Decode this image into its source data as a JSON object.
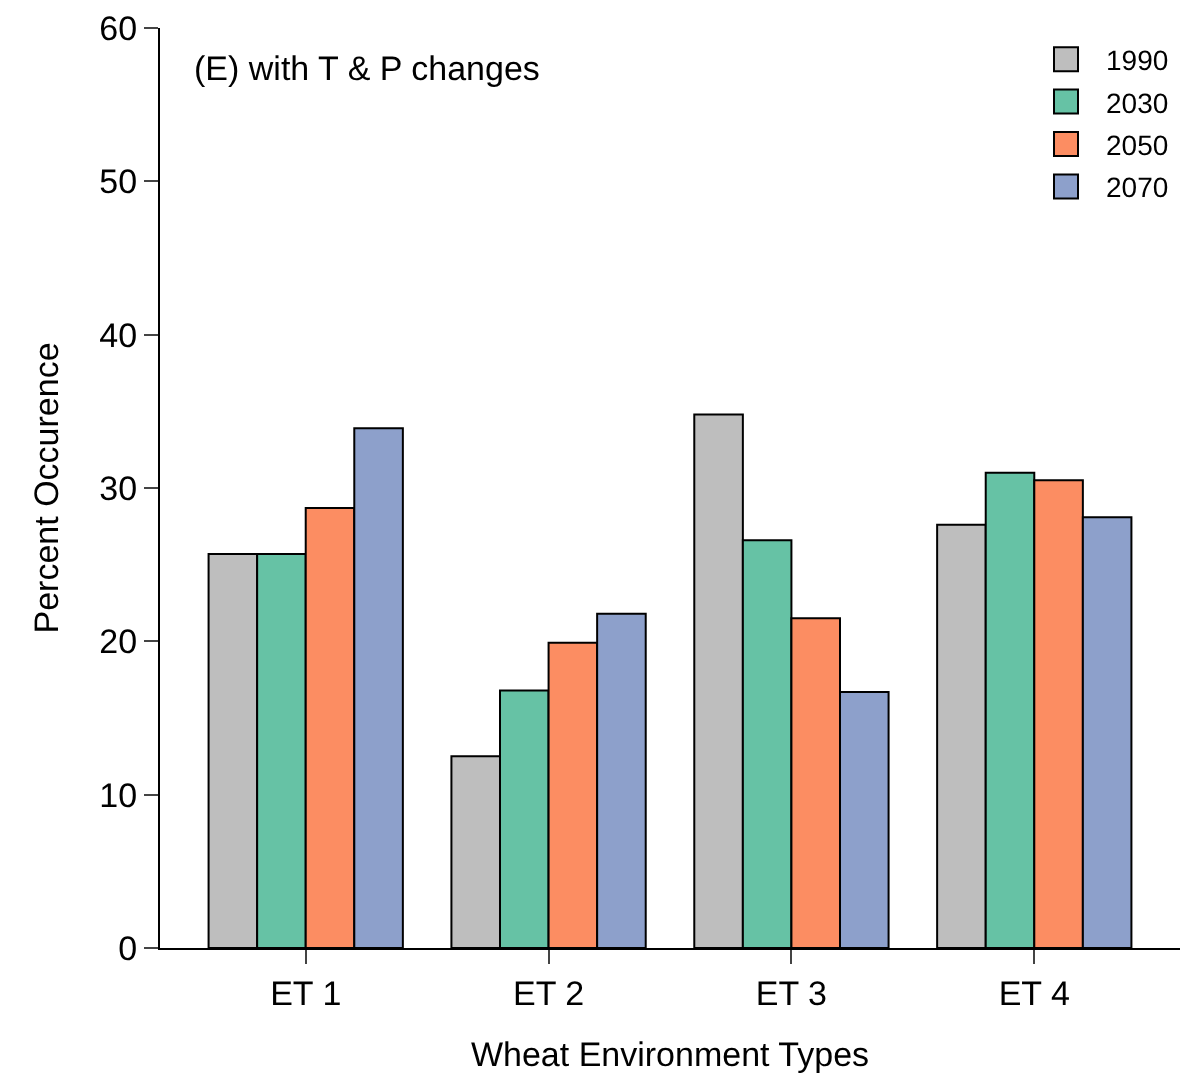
{
  "chart_data": {
    "type": "bar",
    "title": "(E) with T & P changes",
    "xlabel": "Wheat Environment Types",
    "ylabel": "Percent Occurence",
    "categories": [
      "ET 1",
      "ET 2",
      "ET 3",
      "ET 4"
    ],
    "series": [
      {
        "name": "1990",
        "color": "#bebebe",
        "values": [
          25.7,
          12.5,
          34.8,
          27.6
        ]
      },
      {
        "name": "2030",
        "color": "#66c2a5",
        "values": [
          25.7,
          16.8,
          26.6,
          31.0
        ]
      },
      {
        "name": "2050",
        "color": "#fc8d62",
        "values": [
          28.7,
          19.9,
          21.5,
          30.5
        ]
      },
      {
        "name": "2070",
        "color": "#8da0cb",
        "values": [
          33.9,
          21.8,
          16.7,
          28.1
        ]
      }
    ],
    "ylim": [
      0,
      60
    ],
    "yticks": [
      0,
      10,
      20,
      30,
      40,
      50,
      60
    ],
    "legend": "top right"
  }
}
